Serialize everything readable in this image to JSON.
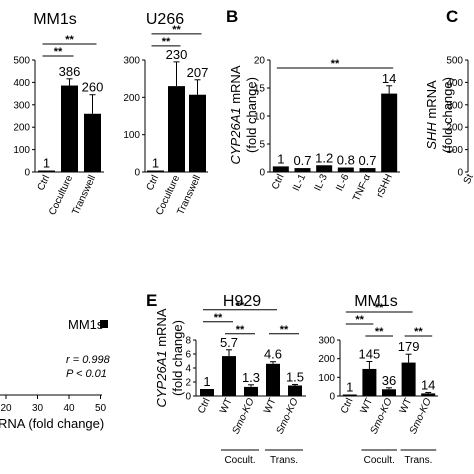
{
  "chart_data": [
    {
      "id": "mm1s-top",
      "type": "bar",
      "title": "MM1s",
      "categories": [
        "Ctrl",
        "Coculture",
        "Transwell"
      ],
      "values": [
        1,
        386,
        260
      ],
      "value_labels": [
        "1",
        "386",
        "260"
      ],
      "errors": [
        0,
        30,
        85
      ],
      "ylim": [
        0,
        500
      ],
      "yticks": [
        "0",
        "100",
        "200",
        "300",
        "400",
        "500"
      ],
      "significance": [
        "**",
        "**"
      ]
    },
    {
      "id": "u266-top",
      "type": "bar",
      "title": "U266",
      "categories": [
        "Ctrl",
        "Coculture",
        "Transwell"
      ],
      "values": [
        1,
        230,
        207
      ],
      "value_labels": [
        "1",
        "230",
        "207"
      ],
      "errors": [
        0,
        65,
        40
      ],
      "ylim": [
        0,
        300
      ],
      "yticks": [
        "0",
        "100",
        "200",
        "300"
      ],
      "significance": [
        "**",
        "**"
      ]
    },
    {
      "id": "panel-b",
      "panel": "B",
      "type": "bar",
      "ylabel_gene": "CYP26A1",
      "ylabel_rest": "mRNA",
      "ylabel_2": "(fold change)",
      "categories": [
        "Ctrl",
        "IL-1",
        "IL-3",
        "IL-6",
        "TNF-α",
        "rSHH"
      ],
      "values": [
        1,
        0.7,
        1.2,
        0.8,
        0.7,
        14
      ],
      "value_labels": [
        "1",
        "0.7",
        "1.2",
        "0.8",
        "0.7",
        "14"
      ],
      "errors": [
        0,
        0,
        0,
        0,
        0,
        1.4
      ],
      "ylim": [
        0,
        20
      ],
      "yticks": [
        "0",
        "5",
        "10",
        "15",
        "20"
      ],
      "significance": [
        "**"
      ]
    },
    {
      "id": "panel-c",
      "panel": "C",
      "type": "bar",
      "ylabel_gene": "SHH",
      "ylabel_rest": "mRNA",
      "ylabel_2": "(fold change)",
      "ylim": [
        0,
        500
      ],
      "yticks": [
        "0",
        "100",
        "200",
        "300",
        "400",
        "500"
      ],
      "categories": [
        "St"
      ]
    },
    {
      "id": "panel-d",
      "type": "scatter",
      "legend": "MM1s",
      "r_text": "r = 0.998",
      "p_text": "P < 0.01",
      "xticks": [
        "20",
        "30",
        "40",
        "50"
      ],
      "xlabel_visible": "RNA (fold change)"
    },
    {
      "id": "h929",
      "panel": "E",
      "type": "bar",
      "title": "H929",
      "ylabel_gene": "CYP26A1",
      "ylabel_rest": "mRNA",
      "ylabel_2": "(fold change)",
      "categories": [
        "Ctrl",
        "WT",
        "Smo-KO",
        "WT",
        "Smo-KO"
      ],
      "values": [
        1,
        5.7,
        1.3,
        4.6,
        1.5
      ],
      "value_labels": [
        "1",
        "5.7",
        "1.3",
        "4.6",
        "1.5"
      ],
      "errors": [
        0,
        0.9,
        0.3,
        0.3,
        0.15
      ],
      "ylim": [
        0,
        8
      ],
      "yticks": [
        "0",
        "2",
        "4",
        "6",
        "8"
      ],
      "groups": [
        "Cocult.",
        "Trans."
      ],
      "significance": [
        "**",
        "**",
        "**",
        "**"
      ]
    },
    {
      "id": "mm1s-e",
      "type": "bar",
      "title": "MM1s",
      "categories": [
        "Ctrl",
        "WT",
        "Smo-KO",
        "WT",
        "Smo-KO"
      ],
      "values": [
        1,
        145,
        36,
        179,
        14
      ],
      "value_labels": [
        "1",
        "145",
        "36",
        "179",
        "14"
      ],
      "errors": [
        0,
        40,
        8,
        45,
        5
      ],
      "ylim": [
        0,
        300
      ],
      "yticks": [
        "0",
        "100",
        "200",
        "300"
      ],
      "groups": [
        "Cocult.",
        "Trans."
      ],
      "significance": [
        "**",
        "**",
        "**",
        "**"
      ]
    }
  ]
}
